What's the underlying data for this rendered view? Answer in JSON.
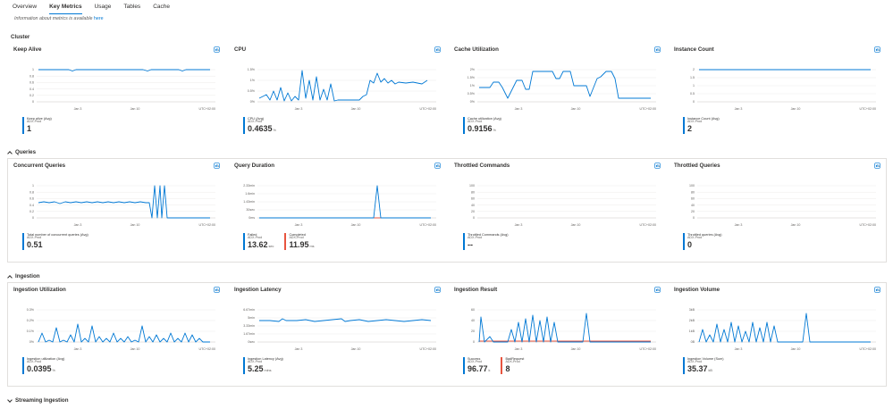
{
  "tabs": [
    {
      "label": "Overview",
      "active": false
    },
    {
      "label": "Key Metrics",
      "active": true
    },
    {
      "label": "Usage",
      "active": false
    },
    {
      "label": "Tables",
      "active": false
    },
    {
      "label": "Cache",
      "active": false
    }
  ],
  "info": {
    "text": "Information about metrics is available ",
    "link": "here"
  },
  "colors": {
    "accent": "#0078d4",
    "error": "#e8543f"
  },
  "x_ticks": [
    "Jan 3",
    "Jan 10",
    "UTC+02:00"
  ],
  "sections": {
    "cluster": "Cluster",
    "queries": "Queries",
    "ingestion": "Ingestion",
    "streaming": "Streaming Ingestion"
  },
  "cards": {
    "keepalive": {
      "title": "Keep Alive",
      "yticks": [
        "1",
        "0.8",
        "0.6",
        "0.4",
        "0.2",
        "0"
      ],
      "legends": [
        {
          "name": "Keep alive (Avg)",
          "source": "ADX-Prod",
          "value": "1",
          "unit": "",
          "color": "#0078d4"
        }
      ]
    },
    "cpu": {
      "title": "CPU",
      "yticks": [
        "1.5%",
        "1%",
        "0.5%",
        "0%"
      ],
      "legends": [
        {
          "name": "CPU (Avg)",
          "source": "ADX-Prod",
          "value": "0.4635",
          "unit": "%",
          "color": "#0078d4"
        }
      ]
    },
    "cache": {
      "title": "Cache Utilization",
      "yticks": [
        "2%",
        "1.5%",
        "1%",
        "0.5%",
        "0%"
      ],
      "legends": [
        {
          "name": "Cache utilization (Avg)",
          "source": "ADX-Prod",
          "value": "0.9156",
          "unit": "%",
          "color": "#0078d4"
        }
      ]
    },
    "instance": {
      "title": "Instance Count",
      "yticks": [
        "2",
        "1.5",
        "1",
        "0.5",
        "0"
      ],
      "legends": [
        {
          "name": "Instance Count (Avg)",
          "source": "ADX-Prod",
          "value": "2",
          "unit": "",
          "color": "#0078d4"
        }
      ]
    },
    "concurrent": {
      "title": "Concurrent Queries",
      "yticks": [
        "1",
        "0.8",
        "0.6",
        "0.4",
        "0.2",
        "0"
      ],
      "legends": [
        {
          "name": "Total number of concurrent queries (Avg)",
          "source": "ADX-Prod",
          "value": "0.51",
          "unit": "",
          "color": "#0078d4"
        }
      ]
    },
    "duration": {
      "title": "Query Duration",
      "yticks": [
        "2.33min",
        "1.6min",
        "1.43min",
        "30sec",
        "0ms"
      ],
      "legends": [
        {
          "name": "Failed",
          "source": "ADX-Prod",
          "value": "13.62",
          "unit": "sec",
          "color": "#0078d4"
        },
        {
          "name": "Completed",
          "source": "ADX-Prod",
          "value": "11.95",
          "unit": "ms",
          "color": "#e8543f"
        }
      ]
    },
    "throttled_cmd": {
      "title": "Throttled Commands",
      "yticks": [
        "100",
        "80",
        "60",
        "40",
        "20",
        "0"
      ],
      "legends": [
        {
          "name": "Throttled Commands (Avg)",
          "source": "ADX-Prod",
          "value": "--",
          "unit": "",
          "color": "#0078d4"
        }
      ]
    },
    "throttled_q": {
      "title": "Throttled Queries",
      "yticks": [
        "100",
        "80",
        "60",
        "40",
        "20",
        "0"
      ],
      "legends": [
        {
          "name": "Throttled queries (Avg)",
          "source": "ADX-Prod",
          "value": "0",
          "unit": "",
          "color": "#0078d4"
        }
      ]
    },
    "ing_util": {
      "title": "Ingestion Utilization",
      "yticks": [
        "0.3%",
        "0.2%",
        "0.1%",
        "0%"
      ],
      "legends": [
        {
          "name": "Ingestion utilization (Avg)",
          "source": "ADX-Prod",
          "value": "0.0395",
          "unit": "%",
          "color": "#0078d4"
        }
      ]
    },
    "ing_latency": {
      "title": "Ingestion Latency",
      "yticks": [
        "6.67min",
        "5min",
        "3.33min",
        "1.67min",
        "0sec"
      ],
      "legends": [
        {
          "name": "Ingestion Latency (Avg)",
          "source": "ADX-Prod",
          "value": "5.25",
          "unit": "mins",
          "color": "#0078d4"
        }
      ]
    },
    "ing_result": {
      "title": "Ingestion Result",
      "yticks": [
        "60",
        "40",
        "20",
        "0"
      ],
      "legends": [
        {
          "name": "Success",
          "source": "ADX-Prod",
          "value": "96.77",
          "unit": "k",
          "color": "#0078d4"
        },
        {
          "name": "BadRequest",
          "source": "ADX-Prod",
          "value": "8",
          "unit": "",
          "color": "#e8543f"
        }
      ]
    },
    "ing_volume": {
      "title": "Ingestion Volume",
      "yticks": [
        "3kB",
        "2kB",
        "1kB",
        "0B"
      ],
      "legends": [
        {
          "name": "Ingestion Volume (Sum)",
          "source": "ADX-Prod",
          "value": "35.37",
          "unit": "kB",
          "color": "#0078d4"
        }
      ]
    }
  }
}
